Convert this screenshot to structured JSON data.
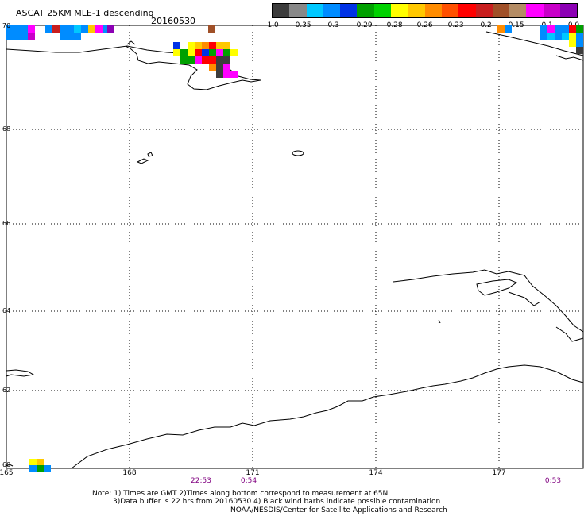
{
  "header": {
    "title": "ASCAT 25KM MLE-1 descending",
    "date": "20160530"
  },
  "colorbar": {
    "colors": [
      "#3c3c3c",
      "#888888",
      "#00c8ff",
      "#008cff",
      "#0032e6",
      "#00a000",
      "#00d200",
      "#ffff00",
      "#ffc800",
      "#ff8c00",
      "#ff5000",
      "#ff0000",
      "#c81e1e",
      "#a05028",
      "#b48c64",
      "#ff00ff",
      "#c800c8",
      "#8c00b4"
    ],
    "labels": [
      "-1.0",
      "-0.35",
      "-0.3",
      "-0.29",
      "-0.28",
      "-0.26",
      "-0.23",
      "-0.2",
      "-0.15",
      "-0.1",
      "0.0"
    ]
  },
  "axes": {
    "lat_labels": [
      "70",
      "68",
      "66",
      "64",
      "62",
      "60"
    ],
    "lon_labels": [
      "165",
      "168",
      "171",
      "174",
      "177"
    ]
  },
  "times": [
    "22:53",
    "0:54",
    "0:53"
  ],
  "notes": {
    "line1": "Note: 1) Times are GMT 2)Times along bottom correspond to measurement at 65N",
    "line2": "3)Data buffer is 22 hrs from 20160530 4) Black wind barbs indicate possible contamination",
    "line3": "NOAA/NESDIS/Center for Satellite Applications and Research"
  }
}
